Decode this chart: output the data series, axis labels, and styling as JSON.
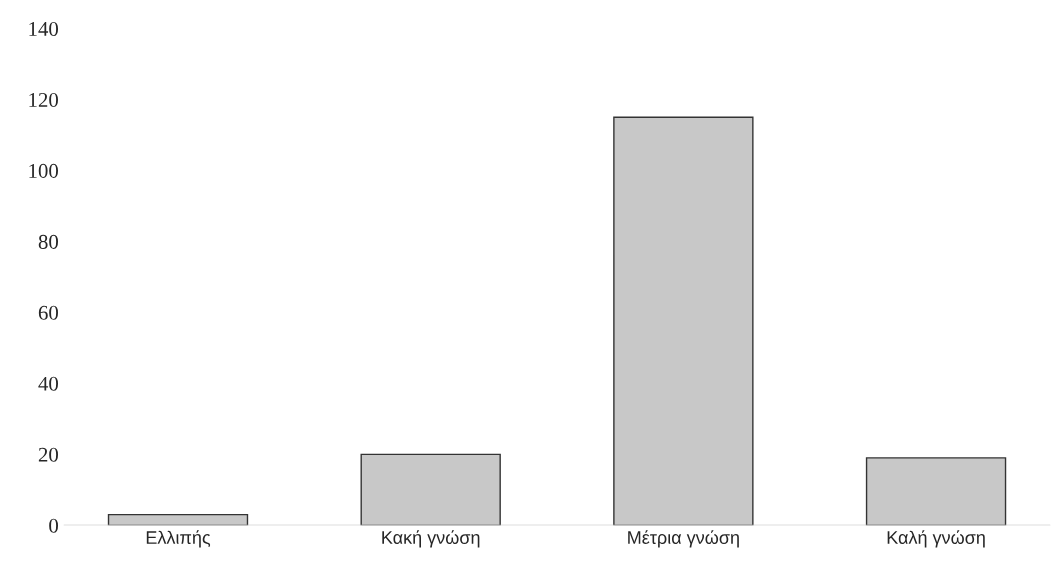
{
  "chart_data": {
    "type": "bar",
    "categories": [
      "Ελλιπής",
      "Κακή γνώση",
      "Μέτρια γνώση",
      "Καλή γνώση"
    ],
    "values": [
      3,
      20,
      115,
      19
    ],
    "color": "#c8c8c8",
    "ylim": [
      0,
      140
    ],
    "yticks": [
      0,
      20,
      40,
      60,
      80,
      100,
      120,
      140
    ],
    "grid": false
  }
}
